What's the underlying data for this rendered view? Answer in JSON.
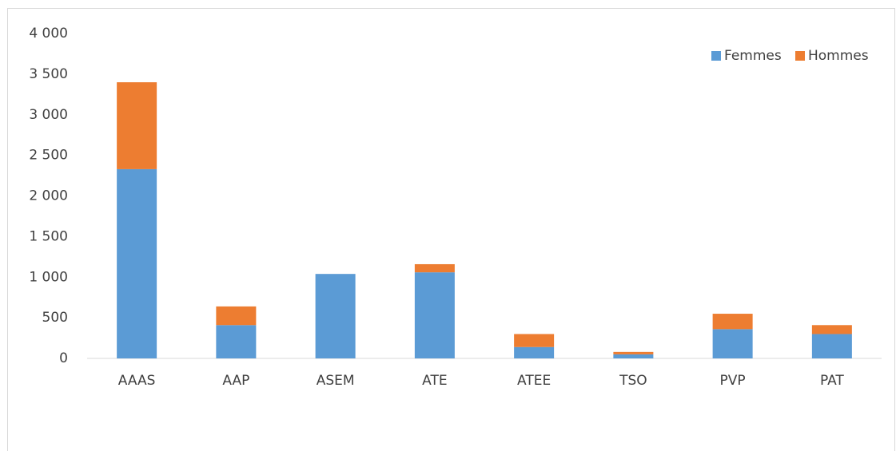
{
  "chart_data": {
    "type": "stacked_bar",
    "categories": [
      "AAAS",
      "AAP",
      "ASEM",
      "ATE",
      "ATEE",
      "TSO",
      "PVP",
      "PAT"
    ],
    "series": [
      {
        "name": "Femmes",
        "color": "#5b9bd5",
        "values": [
          2330,
          410,
          1040,
          1060,
          140,
          50,
          360,
          300
        ]
      },
      {
        "name": "Hommes",
        "color": "#ed7d31",
        "values": [
          1070,
          230,
          0,
          100,
          160,
          30,
          190,
          110
        ]
      }
    ],
    "ylim": [
      0,
      4000
    ],
    "yticks": [
      0,
      500,
      {
        "value": 1000,
        "label": "1 000"
      },
      {
        "value": 1500,
        "label": "1 500"
      },
      {
        "value": 2000,
        "label": "2 000"
      },
      {
        "value": 2500,
        "label": "2 500"
      },
      {
        "value": 3000,
        "label": "3 000"
      },
      {
        "value": 3500,
        "label": "3 500"
      },
      {
        "value": 4000,
        "label": "4 000"
      }
    ],
    "legend": "top-right"
  }
}
